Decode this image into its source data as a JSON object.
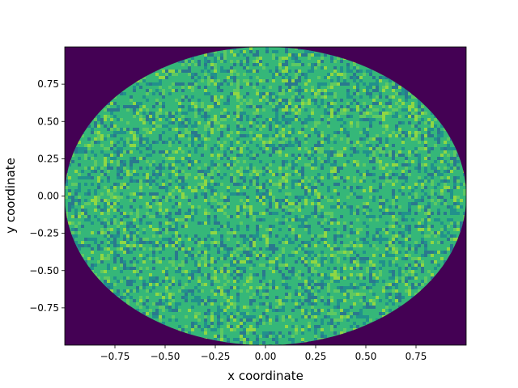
{
  "chart_data": {
    "type": "heatmap",
    "title": "",
    "xlabel": "x coordinate",
    "ylabel": "y coordinate",
    "xlim": [
      -1.0,
      1.0
    ],
    "ylim": [
      -1.0,
      1.0
    ],
    "x_ticks": [
      -0.75,
      -0.5,
      -0.25,
      0.0,
      0.25,
      0.5,
      0.75
    ],
    "x_tick_labels": [
      "−0.75",
      "−0.50",
      "−0.25",
      "0.00",
      "0.25",
      "0.50",
      "0.75"
    ],
    "y_ticks": [
      -0.75,
      -0.5,
      -0.25,
      0.0,
      0.25,
      0.5,
      0.75
    ],
    "y_tick_labels": [
      "−0.75",
      "−0.50",
      "−0.25",
      "0.00",
      "0.25",
      "0.50",
      "0.75"
    ],
    "colormap": "viridis",
    "region": "unit disk (x^2 + y^2 <= 1)",
    "inside_value_range": [
      0.5,
      0.85
    ],
    "outside_value": 0.0,
    "grid": false,
    "legend": "none"
  },
  "colors": {
    "outside": "#440154",
    "inside_low": "#21918c",
    "inside_mid": "#35b779",
    "inside_high": "#90d743"
  }
}
